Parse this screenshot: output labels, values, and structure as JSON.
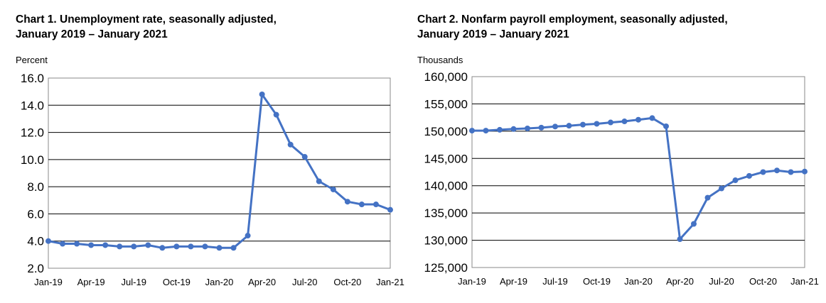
{
  "colors": {
    "series": "#4472C4",
    "grid": "#000000"
  },
  "chart_data": [
    {
      "type": "line",
      "title_line1": "Chart 1. Unemployment rate, seasonally adjusted,",
      "title_line2": "January 2019 – January 2021",
      "ylabel": "Percent",
      "xlabel": "",
      "ylim": [
        2.0,
        16.0
      ],
      "y_ticks": [
        "2.0",
        "4.0",
        "6.0",
        "8.0",
        "10.0",
        "12.0",
        "14.0",
        "16.0"
      ],
      "x_tick_labels": [
        "Jan-19",
        "Apr-19",
        "Jul-19",
        "Oct-19",
        "Jan-20",
        "Apr-20",
        "Jul-20",
        "Oct-20",
        "Jan-21"
      ],
      "grid": "horizontal",
      "x": [
        "Jan-19",
        "Feb-19",
        "Mar-19",
        "Apr-19",
        "May-19",
        "Jun-19",
        "Jul-19",
        "Aug-19",
        "Sep-19",
        "Oct-19",
        "Nov-19",
        "Dec-19",
        "Jan-20",
        "Feb-20",
        "Mar-20",
        "Apr-20",
        "May-20",
        "Jun-20",
        "Jul-20",
        "Aug-20",
        "Sep-20",
        "Oct-20",
        "Nov-20",
        "Dec-20",
        "Jan-21"
      ],
      "series": [
        {
          "values": [
            4.0,
            3.8,
            3.8,
            3.7,
            3.7,
            3.6,
            3.6,
            3.7,
            3.5,
            3.6,
            3.6,
            3.6,
            3.5,
            3.5,
            4.4,
            14.8,
            13.3,
            11.1,
            10.2,
            8.4,
            7.8,
            6.9,
            6.7,
            6.7,
            6.3
          ]
        }
      ]
    },
    {
      "type": "line",
      "title_line1": "Chart 2. Nonfarm payroll employment, seasonally adjusted,",
      "title_line2": "January 2019 – January 2021",
      "ylabel": "Thousands",
      "xlabel": "",
      "ylim": [
        125000,
        160000
      ],
      "y_ticks": [
        "125,000",
        "130,000",
        "135,000",
        "140,000",
        "145,000",
        "150,000",
        "155,000",
        "160,000"
      ],
      "x_tick_labels": [
        "Jan-19",
        "Apr-19",
        "Jul-19",
        "Oct-19",
        "Jan-20",
        "Apr-20",
        "Jul-20",
        "Oct-20",
        "Jan-21"
      ],
      "grid": "horizontal",
      "x": [
        "Jan-19",
        "Feb-19",
        "Mar-19",
        "Apr-19",
        "May-19",
        "Jun-19",
        "Jul-19",
        "Aug-19",
        "Sep-19",
        "Oct-19",
        "Nov-19",
        "Dec-19",
        "Jan-20",
        "Feb-20",
        "Mar-20",
        "Apr-20",
        "May-20",
        "Jun-20",
        "Jul-20",
        "Aug-20",
        "Sep-20",
        "Oct-20",
        "Nov-20",
        "Dec-20",
        "Jan-21"
      ],
      "series": [
        {
          "values": [
            150100,
            150100,
            150250,
            150400,
            150500,
            150650,
            150850,
            151000,
            151200,
            151350,
            151600,
            151800,
            152100,
            152400,
            150900,
            130200,
            133000,
            137800,
            139500,
            141000,
            141800,
            142500,
            142800,
            142500,
            142600
          ]
        }
      ]
    }
  ]
}
